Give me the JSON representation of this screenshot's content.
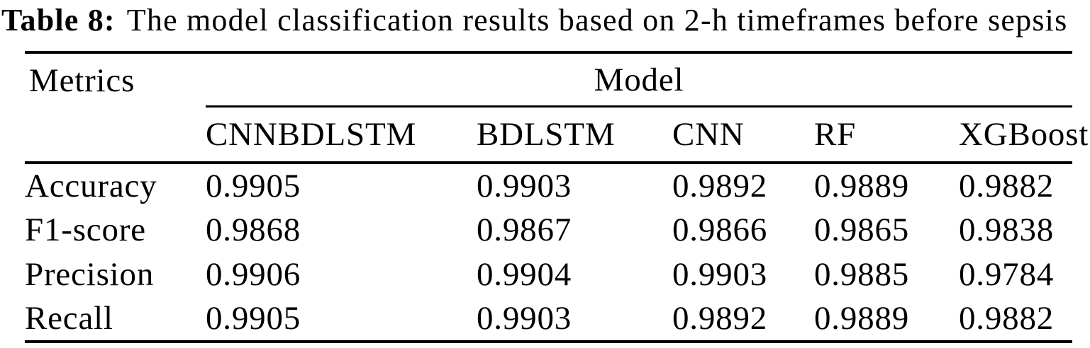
{
  "title": {
    "label": "Table 8:",
    "text": "The model classification results based on 2-h timeframes before sepsis"
  },
  "table": {
    "corner_header": "Metrics",
    "group_header": "Model",
    "columns": [
      "CNNBDLSTM",
      "BDLSTM",
      "CNN",
      "RF",
      "XGBoost"
    ],
    "rows": [
      {
        "metric": "Accuracy",
        "values": [
          "0.9905",
          "0.9903",
          "0.9892",
          "0.9889",
          "0.9882"
        ]
      },
      {
        "metric": "F1-score",
        "values": [
          "0.9868",
          "0.9867",
          "0.9866",
          "0.9865",
          "0.9838"
        ]
      },
      {
        "metric": "Precision",
        "values": [
          "0.9906",
          "0.9904",
          "0.9903",
          "0.9885",
          "0.9784"
        ]
      },
      {
        "metric": "Recall",
        "values": [
          "0.9905",
          "0.9903",
          "0.9892",
          "0.9889",
          "0.9882"
        ]
      }
    ]
  },
  "colors": {
    "text": "#000000",
    "background": "#ffffff",
    "rule": "#000000"
  },
  "chart_data": {
    "type": "table",
    "title": "Table 8: The model classification results based on 2-h timeframes before sepsis",
    "row_header_label": "Metrics",
    "column_group_label": "Model",
    "columns": [
      "CNNBDLSTM",
      "BDLSTM",
      "CNN",
      "RF",
      "XGBoost"
    ],
    "rows": [
      {
        "metric": "Accuracy",
        "values": [
          0.9905,
          0.9903,
          0.9892,
          0.9889,
          0.9882
        ]
      },
      {
        "metric": "F1-score",
        "values": [
          0.9868,
          0.9867,
          0.9866,
          0.9865,
          0.9838
        ]
      },
      {
        "metric": "Precision",
        "values": [
          0.9906,
          0.9904,
          0.9903,
          0.9885,
          0.9784
        ]
      },
      {
        "metric": "Recall",
        "values": [
          0.9905,
          0.9903,
          0.9892,
          0.9889,
          0.9882
        ]
      }
    ]
  }
}
